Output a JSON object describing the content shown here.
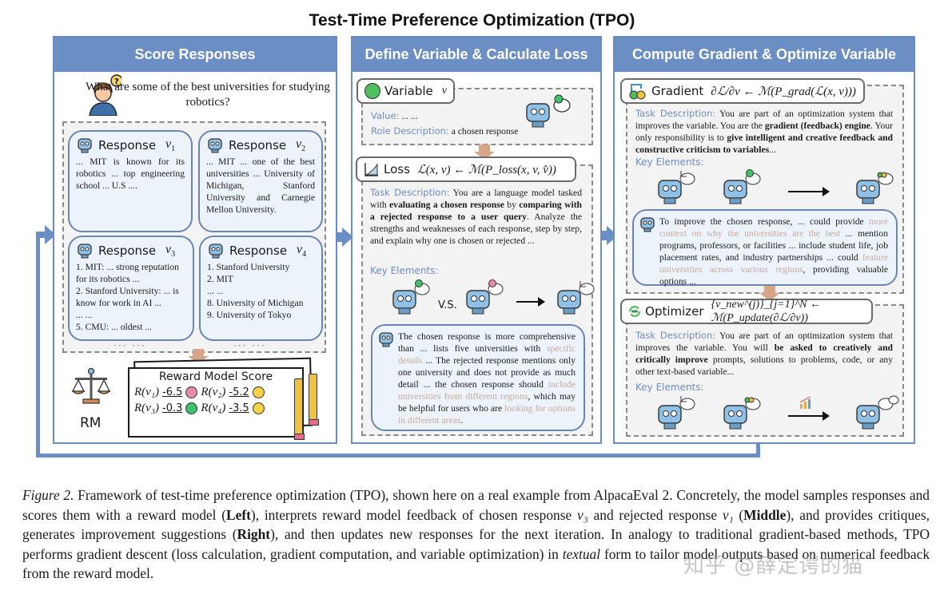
{
  "title": "Test-Time Preference Optimization (TPO)",
  "colors": {
    "header_blue": "#6b8ec4",
    "card_border": "#6a86b0",
    "card_fill": "#edf3fa",
    "label_blue": "#6f8dc0",
    "muted_text": "#c9a79a",
    "down_arrow": "#d9a588"
  },
  "panels": {
    "left": {
      "header": "Score Responses",
      "question": "What are some of the best universities for studying robotics?",
      "responses": [
        {
          "label": "Response",
          "var": "v",
          "sub": "1",
          "text": "... MIT is known for its robotics ... top engineering school ... U.S ...."
        },
        {
          "label": "Response",
          "var": "v",
          "sub": "2",
          "text": "... MIT ... one of the best universities ... University of Michigan, Stanford University and Carnegie Mellon University."
        },
        {
          "label": "Response",
          "var": "v",
          "sub": "3",
          "lines": [
            "1. MIT: ... strong reputation for its robotics ...",
            "2. Stanford University: ... is know for work in AI ...",
            "... ...",
            "5. CMU: ... oldest ..."
          ]
        },
        {
          "label": "Response",
          "var": "v",
          "sub": "4",
          "lines": [
            "1. Stanford University",
            "2. MIT",
            "... ...",
            "8. University of Michigan",
            "9. University of Tokyo"
          ]
        }
      ],
      "ellipsis": "··· ···",
      "rm_label": "RM",
      "score_card": {
        "title": "Reward Model Score",
        "scores": [
          {
            "r": "R(v₁)",
            "value": "-6.5",
            "face": "sad",
            "color": "#e98aa6"
          },
          {
            "r": "R(v₂)",
            "value": "-5.2",
            "face": "neutral",
            "color": "#f3d34a"
          },
          {
            "r": "R(v₃)",
            "value": "-0.3",
            "face": "happy",
            "color": "#3cc26a"
          },
          {
            "r": "R(v₄)",
            "value": "-3.5",
            "face": "neutral",
            "color": "#f3d34a"
          }
        ]
      }
    },
    "middle": {
      "header": "Define Variable & Calculate Loss",
      "variable": {
        "label": "Variable",
        "math": "v",
        "value_label": "Value:",
        "value": "... ...",
        "role_label": "Role Description:",
        "role": "a chosen response"
      },
      "loss": {
        "label": "Loss",
        "math": "ℒ(x, v) ← ℳ(P_loss(x, v, v̂))",
        "task_label": "Task Description:",
        "task_parts": [
          {
            "t": " You are a language model tasked with ",
            "b": false
          },
          {
            "t": "evaluating a chosen response",
            "b": true
          },
          {
            "t": " by ",
            "b": false
          },
          {
            "t": "comparing with a rejected response to a user query",
            "b": true
          },
          {
            "t": ". Analyze the strengths and weaknesses of each response, step by step, and explain why one is chosen or rejected ...",
            "b": false
          }
        ],
        "key_label": "Key Elements:",
        "vs": "V.S.",
        "feedback_parts": [
          {
            "t": "The chosen response is more comprehensive than ... lists five universities with ",
            "m": false
          },
          {
            "t": "specific details",
            "m": true
          },
          {
            "t": " ... The rejected response mentions only one university and does not provide as much detail ... the chosen response should ",
            "m": false
          },
          {
            "t": "include universities from different regions",
            "m": true
          },
          {
            "t": ", which may be helpful for users who are ",
            "m": false
          },
          {
            "t": "looking for options in different areas",
            "m": true
          },
          {
            "t": ".",
            "m": false
          }
        ]
      }
    },
    "right": {
      "header": "Compute Gradient & Optimize Variable",
      "gradient": {
        "label": "Gradient",
        "math": "∂ℒ/∂v ← ℳ(P_grad(ℒ(x, v)))",
        "task_label": "Task Description:",
        "task_parts": [
          {
            "t": " You are part of an optimization system that improves the variable.  You are the ",
            "b": false
          },
          {
            "t": "gradient (feedback) engine",
            "b": true
          },
          {
            "t": ".  Your only responsibility is to ",
            "b": false
          },
          {
            "t": "give intelligent and creative feedback and constructive criticism to variables",
            "b": true
          },
          {
            "t": "...",
            "b": false
          }
        ],
        "key_label": "Key Elements:",
        "feedback_parts": [
          {
            "t": "To improve the chosen response, ... could provide ",
            "m": false
          },
          {
            "t": "more context on why the universities are the best",
            "m": true
          },
          {
            "t": " ... mention programs, professors, or facilities ... include student life, job placement rates, and industry partnerships ... could ",
            "m": false
          },
          {
            "t": "feature universities across various regions",
            "m": true
          },
          {
            "t": ", providing valuable options ...",
            "m": false
          }
        ]
      },
      "optimizer": {
        "label": "Optimizer",
        "math": "{v_new^(j)}_{j=1}^N ← ℳ(P_update(∂ℒ/∂v))",
        "task_label": "Task Description:",
        "task_parts": [
          {
            "t": " You are part of an optimization system that improves the variable. You will ",
            "b": false
          },
          {
            "t": "be asked to creatively and critically improve",
            "b": true
          },
          {
            "t": " prompts, solutions to problems, code, or any other text-based variable...",
            "b": false
          }
        ],
        "key_label": "Key Elements:"
      }
    }
  },
  "caption": {
    "parts": [
      {
        "t": "Figure 2.",
        "s": "i"
      },
      {
        "t": " Framework of test-time preference optimization (TPO), shown here on a real example from AlpacaEval 2. Concretely, the model samples responses and scores them with a reward model (",
        "s": ""
      },
      {
        "t": "Left",
        "s": "b"
      },
      {
        "t": "), interprets reward model feedback of chosen response ",
        "s": ""
      },
      {
        "t": "v₃",
        "s": "i"
      },
      {
        "t": " and rejected response ",
        "s": ""
      },
      {
        "t": "v₁",
        "s": "i"
      },
      {
        "t": " (",
        "s": ""
      },
      {
        "t": "Middle",
        "s": "b"
      },
      {
        "t": "), and provides critiques, generates improvement suggestions (",
        "s": ""
      },
      {
        "t": "Right",
        "s": "b"
      },
      {
        "t": "), and then updates new responses for the next iteration. In analogy to traditional gradient-based methods, TPO performs gradient descent (loss calculation, gradient computation, and variable optimization) in ",
        "s": ""
      },
      {
        "t": "textual",
        "s": "i"
      },
      {
        "t": " form to tailor model outputs based on numerical feedback from the reward model.",
        "s": ""
      }
    ]
  },
  "watermark": "知乎 @薛定谔的猫"
}
